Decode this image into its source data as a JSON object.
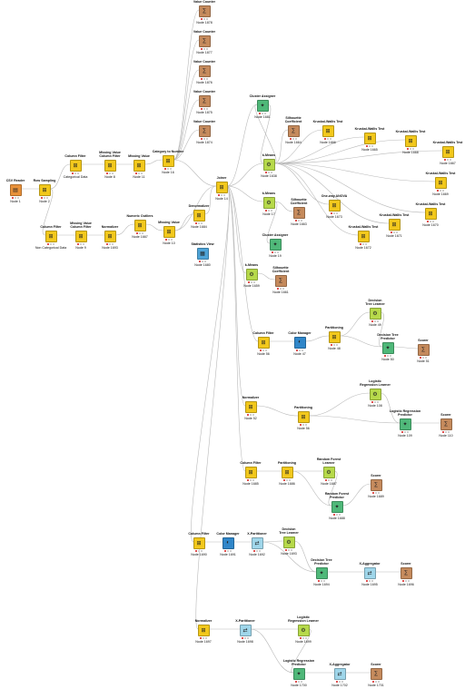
{
  "colors": {
    "edge": "#b9b9b9",
    "status_red": "#e05050",
    "manipulator": "#f2c81c",
    "sink": "#c58a5c",
    "learner": "#b6d94a",
    "predictor": "#4fb879",
    "view": "#4ea4d8",
    "source": "#e8913a",
    "partition": "#9fd6ea",
    "color_manager": "#2f86c9"
  },
  "nodes": {
    "vc1878": {
      "title": "Value Counter",
      "label": "Node 1878",
      "icon": "sink"
    },
    "vc1877": {
      "title": "Value Counter",
      "label": "Node 1877",
      "icon": "sink"
    },
    "vc1876": {
      "title": "Value Counter",
      "label": "Node 1876",
      "icon": "sink"
    },
    "vc1875": {
      "title": "Value Counter",
      "label": "Node 1875",
      "icon": "sink"
    },
    "vc1874": {
      "title": "Value Counter",
      "label": "Node 1874",
      "icon": "sink"
    },
    "csv": {
      "title": "CSV Reader",
      "label": "Node 1",
      "icon": "source"
    },
    "rowsamp": {
      "title": "Row Sampling",
      "label": "Node 2",
      "icon": "manipulator"
    },
    "colfilter_cat": {
      "title": "Column Filter",
      "label": "Categorical Data",
      "icon": "manipulator"
    },
    "mvcf8": {
      "title": "Missing Value\nColumn Filter",
      "label": "Node 8",
      "icon": "manipulator"
    },
    "mv11": {
      "title": "Missing Value",
      "label": "Node 11",
      "icon": "manipulator"
    },
    "cat2num": {
      "title": "Category to Number",
      "label": "Node 16",
      "icon": "manipulator"
    },
    "colfilter_noncat": {
      "title": "Column Filter",
      "label": "Non Categorical Data",
      "icon": "manipulator"
    },
    "mvcf9": {
      "title": "Missing Value\nColumn Filter",
      "label": "Node 9",
      "icon": "manipulator"
    },
    "norm1693": {
      "title": "Normalizer",
      "label": "Node 1693",
      "icon": "manipulator"
    },
    "numout": {
      "title": "Numeric Outliers",
      "label": "Node 1667",
      "icon": "manipulator"
    },
    "mv10": {
      "title": "Missing Value",
      "label": "Node 10",
      "icon": "manipulator"
    },
    "denorm": {
      "title": "Denormalizer",
      "label": "Node 1684",
      "icon": "manipulator"
    },
    "statview": {
      "title": "Statistics View",
      "label": "Node 1680",
      "icon": "view"
    },
    "joiner": {
      "title": "Joiner",
      "label": "Node 14",
      "icon": "manipulator"
    },
    "clustassign1681": {
      "title": "Cluster Assigner",
      "label": "Node 1681",
      "icon": "predictor"
    },
    "sil1664": {
      "title": "Silhouette\nCoefficient",
      "label": "Node 1664",
      "icon": "sink"
    },
    "kw1666": {
      "title": "Kruskal-Wallis Test",
      "label": "Node 1666",
      "icon": "manipulator"
    },
    "kw1665": {
      "title": "Kruskal-Wallis Test",
      "label": "Node 1665",
      "icon": "manipulator"
    },
    "kw1668": {
      "title": "Kruskal-Wallis Test",
      "label": "Node 1668",
      "icon": "manipulator"
    },
    "kw1667": {
      "title": "Kruskal-Wallis Test",
      "label": "Node 1667",
      "icon": "manipulator"
    },
    "kmeans1638": {
      "title": "k-Means",
      "label": "Node 1638",
      "icon": "learner"
    },
    "kw1669": {
      "title": "Kruskal-Wallis Test",
      "label": "Node 1669",
      "icon": "manipulator"
    },
    "kmeans17": {
      "title": "k-Means",
      "label": "Node 17",
      "icon": "learner"
    },
    "sil1663": {
      "title": "Silhouette\nCoefficient",
      "label": "Node 1663",
      "icon": "sink"
    },
    "anova": {
      "title": "One-way ANOVA",
      "label": "Node 1673",
      "icon": "manipulator"
    },
    "kw1670": {
      "title": "Kruskal-Wallis Test",
      "label": "Node 1670",
      "icon": "manipulator"
    },
    "kw1671": {
      "title": "Kruskal-Wallis Test",
      "label": "Node 1671",
      "icon": "manipulator"
    },
    "kw1672": {
      "title": "Kruskal-Wallis Test",
      "label": "Node 1672",
      "icon": "manipulator"
    },
    "clustassign19": {
      "title": "Cluster Assigner",
      "label": "Node 19",
      "icon": "predictor"
    },
    "kmeans1659": {
      "title": "k-Means",
      "label": "Node 1659",
      "icon": "learner"
    },
    "sil1661": {
      "title": "Silhouette\nCoefficient",
      "label": "Node 1661",
      "icon": "sink"
    },
    "dtlearn48": {
      "title": "Decision\nTree Learner",
      "label": "Node 49",
      "icon": "learner"
    },
    "colfilter56": {
      "title": "Column Filter",
      "label": "Node 56",
      "icon": "manipulator"
    },
    "colormgr47": {
      "title": "Color Manager",
      "label": "Node 47",
      "icon": "color_manager"
    },
    "partition48": {
      "title": "Partitioning",
      "label": "Node 48",
      "icon": "manipulator"
    },
    "dtpred50": {
      "title": "Decision Tree\nPredictor",
      "label": "Node 50",
      "icon": "predictor"
    },
    "scorer51": {
      "title": "Scorer",
      "label": "Node 51",
      "icon": "sink"
    },
    "lrlearn108": {
      "title": "Logistic\nRegression Learner",
      "label": "Node 108",
      "icon": "learner"
    },
    "norm52": {
      "title": "Normalizer",
      "label": "Node 52",
      "icon": "manipulator"
    },
    "partition56": {
      "title": "Partitioning",
      "label": "Node 56",
      "icon": "manipulator"
    },
    "lrpred109": {
      "title": "Logistic Regression\nPredictor",
      "label": "Node 109",
      "icon": "predictor"
    },
    "scorer110": {
      "title": "Scorer",
      "label": "Node 110",
      "icon": "sink"
    },
    "rflearn": {
      "title": "Random Forest\nLearner",
      "label": "Node 1687",
      "icon": "learner"
    },
    "colfilter1685": {
      "title": "Column Filter",
      "label": "Node 1685",
      "icon": "manipulator"
    },
    "partition1686": {
      "title": "Partitioning",
      "label": "Node 1686",
      "icon": "manipulator"
    },
    "scorer1689": {
      "title": "Scorer",
      "label": "Node 1689",
      "icon": "sink"
    },
    "rfpred": {
      "title": "Random Forest\nPredictor",
      "label": "Node 1688",
      "icon": "predictor"
    },
    "colfilter1690": {
      "title": "Column Filter",
      "label": "Node 1690",
      "icon": "manipulator"
    },
    "colormgr1691": {
      "title": "Color Manager",
      "label": "Node 1691",
      "icon": "color_manager"
    },
    "xpart1692": {
      "title": "X-Partitioner",
      "label": "Node 1692",
      "icon": "partition"
    },
    "dtlearn1693": {
      "title": "Decision\nTree Learner",
      "label": "Node 1693",
      "icon": "learner"
    },
    "dtpred1694": {
      "title": "Decision Tree\nPredictor",
      "label": "Node 1694",
      "icon": "predictor"
    },
    "xagg1695": {
      "title": "X-Aggregator",
      "label": "Node 1695",
      "icon": "partition"
    },
    "scorer1696": {
      "title": "Scorer",
      "label": "Node 1696",
      "icon": "sink"
    },
    "norm1697": {
      "title": "Normalizer",
      "label": "Node 1697",
      "icon": "manipulator"
    },
    "xpart1698": {
      "title": "X-Partitioner",
      "label": "Node 1698",
      "icon": "partition"
    },
    "lrlearn1699": {
      "title": "Logistic\nRegression Learner",
      "label": "Node 1699",
      "icon": "learner"
    },
    "lrpred1700": {
      "title": "Logistic Regression\nPredictor",
      "label": "Node 1700",
      "icon": "predictor"
    },
    "xagg1702": {
      "title": "X-Aggregator",
      "label": "Node 1702",
      "icon": "partition"
    },
    "scorer1701": {
      "title": "Scorer",
      "label": "Node 1701",
      "icon": "sink"
    }
  }
}
